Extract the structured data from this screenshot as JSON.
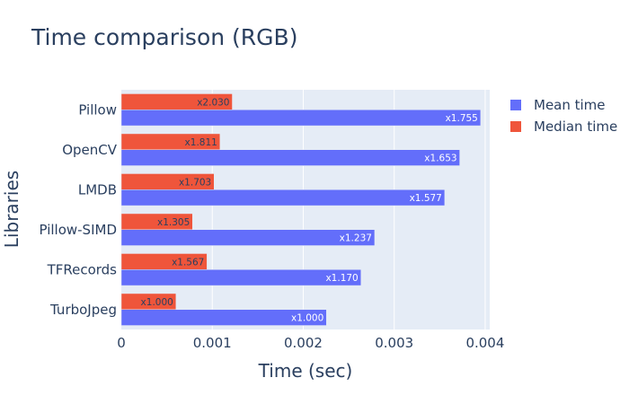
{
  "chart_data": {
    "type": "bar",
    "orientation": "horizontal",
    "title": "Time comparison (RGB)",
    "xlabel": "Time (sec)",
    "ylabel": "Libraries",
    "xlim": [
      0,
      0.00405
    ],
    "xticks": [
      0,
      0.001,
      0.002,
      0.003,
      0.004
    ],
    "xtick_labels": [
      "0",
      "0.001",
      "0.002",
      "0.003",
      "0.004"
    ],
    "categories": [
      "Pillow",
      "OpenCV",
      "LMDB",
      "Pillow-SIMD",
      "TFRecords",
      "TurboJpeg"
    ],
    "series": [
      {
        "name": "Mean time",
        "color": "#636efa",
        "label_color": "#ffffff",
        "values": [
          0.00395,
          0.00372,
          0.003555,
          0.002785,
          0.002635,
          0.002255
        ],
        "labels": [
          "x1.755",
          "x1.653",
          "x1.577",
          "x1.237",
          "x1.170",
          "x1.000"
        ]
      },
      {
        "name": "Median time",
        "color": "#ef553b",
        "label_color": "#2a3f5f",
        "values": [
          0.00122,
          0.001085,
          0.00102,
          0.000783,
          0.000942,
          0.000601
        ],
        "labels": [
          "x2.030",
          "x1.811",
          "x1.703",
          "x1.305",
          "x1.567",
          "x1.000"
        ]
      }
    ],
    "grid": true,
    "legend_position": "top-right"
  }
}
